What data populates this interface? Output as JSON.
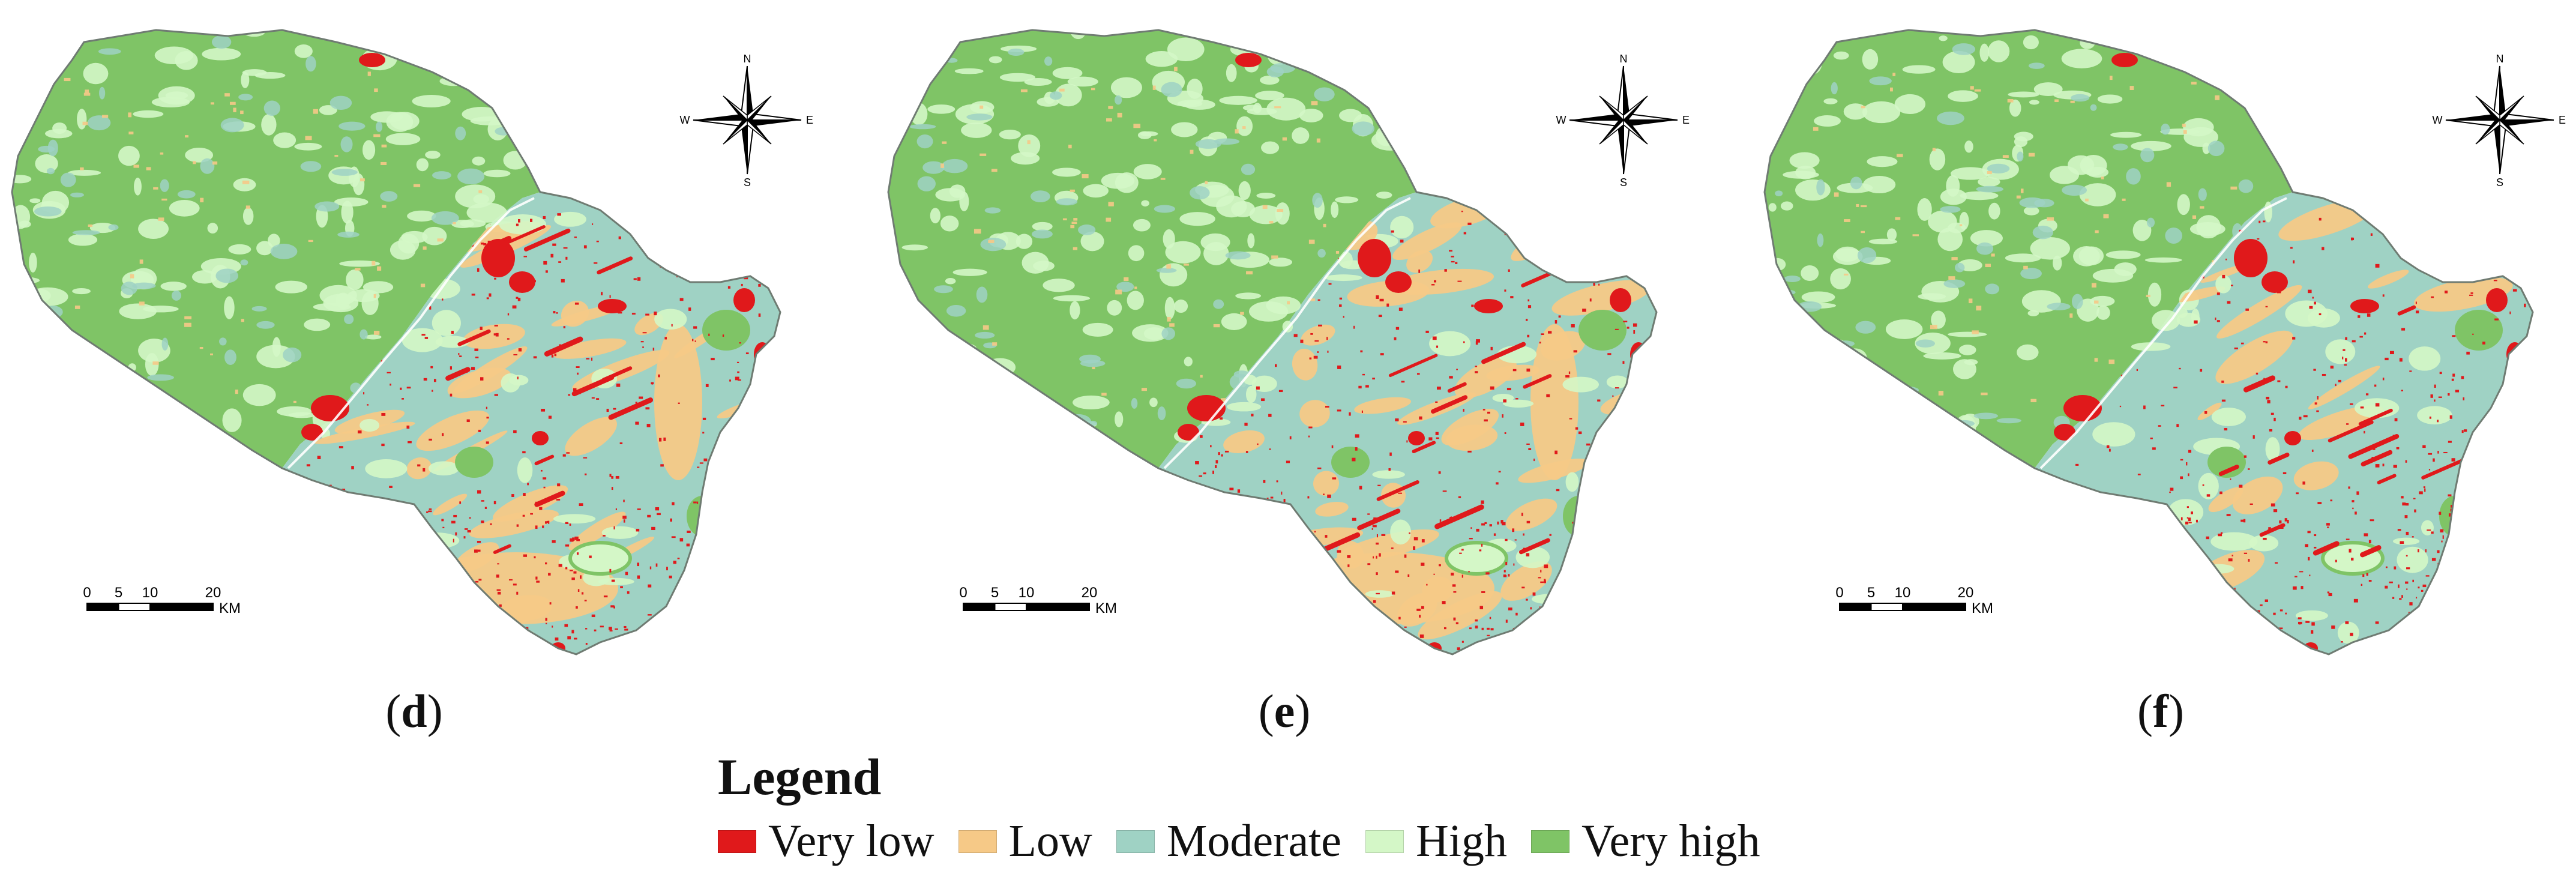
{
  "colors": {
    "very_low": "#e0191b",
    "low": "#f6c987",
    "moderate": "#9fd2c4",
    "high": "#d4f7c7",
    "very_high": "#7fc466",
    "outline": "#6f7b72"
  },
  "panels": [
    {
      "id": "d",
      "label_open": "(",
      "label_letter": "d",
      "label_close": ")",
      "compass": {
        "n": "N",
        "s": "S",
        "e": "E",
        "w": "W"
      },
      "scale_ticks": [
        "0",
        "5",
        "10",
        "20"
      ],
      "scale_unit": "KM"
    },
    {
      "id": "e",
      "label_open": "(",
      "label_letter": "e",
      "label_close": ")",
      "compass": {
        "n": "N",
        "s": "S",
        "e": "E",
        "w": "W"
      },
      "scale_ticks": [
        "0",
        "5",
        "10",
        "20"
      ],
      "scale_unit": "KM"
    },
    {
      "id": "f",
      "label_open": "(",
      "label_letter": "f",
      "label_close": ")",
      "compass": {
        "n": "N",
        "s": "S",
        "e": "E",
        "w": "W"
      },
      "scale_ticks": [
        "0",
        "5",
        "10",
        "20"
      ],
      "scale_unit": "KM"
    }
  ],
  "legend": {
    "title": "Legend",
    "items": [
      {
        "label": "Very low",
        "color": "#e0191b"
      },
      {
        "label": "Low",
        "color": "#f6c987"
      },
      {
        "label": "Moderate",
        "color": "#9fd2c4"
      },
      {
        "label": "High",
        "color": "#d4f7c7"
      },
      {
        "label": "Very high",
        "color": "#7fc466"
      }
    ]
  }
}
